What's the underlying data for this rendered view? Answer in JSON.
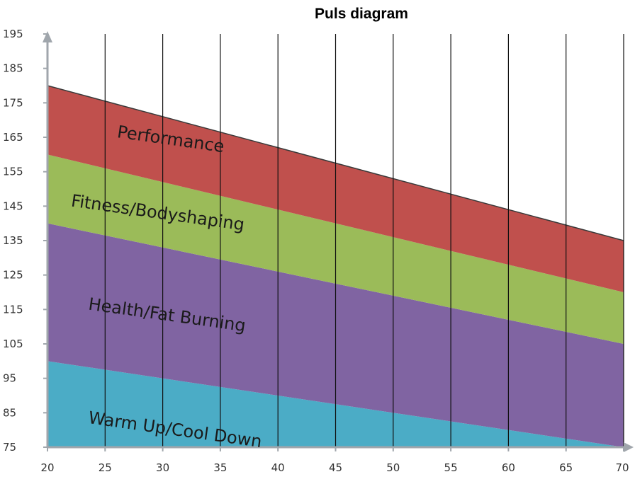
{
  "chart_data": {
    "type": "area",
    "title": "Puls diagram",
    "xlabel": "",
    "ylabel": "",
    "x": [
      20,
      70
    ],
    "xlim": [
      20,
      70
    ],
    "ylim": [
      75,
      195
    ],
    "x_ticks": [
      "20",
      "25",
      "30",
      "35",
      "40",
      "45",
      "50",
      "55",
      "60",
      "65",
      "70"
    ],
    "y_ticks": [
      "75",
      "85",
      "95",
      "105",
      "115",
      "125",
      "135",
      "145",
      "155",
      "165",
      "175",
      "185",
      "195"
    ],
    "grid": "vertical",
    "zones": [
      {
        "name": "Warm Up/Cool Down",
        "color": "#4bacc6",
        "lower": [
          75,
          75
        ],
        "upper": [
          100,
          75
        ]
      },
      {
        "name": "Health/Fat Burning",
        "color": "#8064a2",
        "lower": [
          100,
          75
        ],
        "upper": [
          140,
          105
        ]
      },
      {
        "name": "Fitness/Bodyshaping",
        "color": "#9bbb59",
        "lower": [
          140,
          105
        ],
        "upper": [
          160,
          120
        ]
      },
      {
        "name": "Performance",
        "color": "#c0504d",
        "lower": [
          160,
          120
        ],
        "upper": [
          180,
          135
        ]
      }
    ]
  }
}
